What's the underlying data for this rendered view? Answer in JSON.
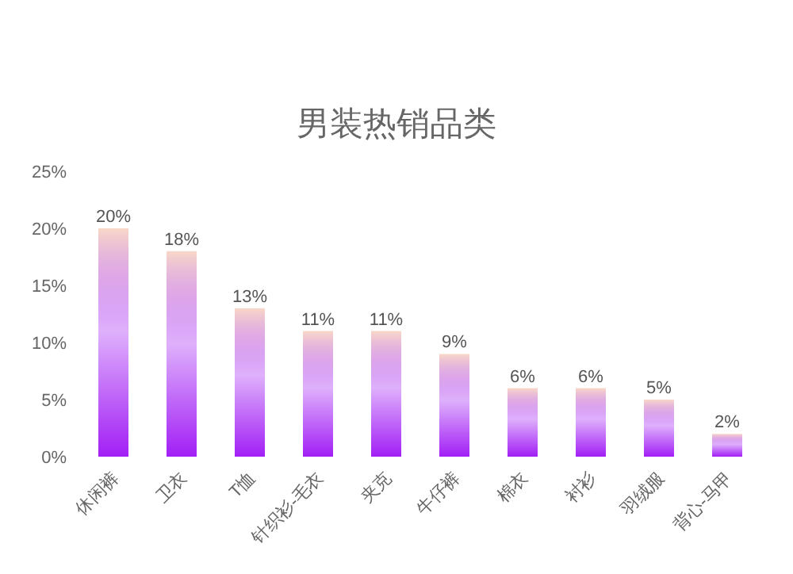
{
  "chart_data": {
    "type": "bar",
    "title": "男装热销品类",
    "categories": [
      "休闲裤",
      "卫衣",
      "T恤",
      "针织衫-毛衣",
      "夹克",
      "牛仔裤",
      "棉衣",
      "衬衫",
      "羽绒服",
      "背心-马甲"
    ],
    "values": [
      20,
      18,
      13,
      11,
      11,
      9,
      6,
      6,
      5,
      2
    ],
    "value_labels": [
      "20%",
      "18%",
      "13%",
      "11%",
      "11%",
      "9%",
      "6%",
      "6%",
      "5%",
      "2%"
    ],
    "color": "#a21ff5",
    "ylim": [
      0,
      25
    ],
    "yticks": [
      {
        "value": 0,
        "label": "0%"
      },
      {
        "value": 5,
        "label": "5%"
      },
      {
        "value": 10,
        "label": "10%"
      },
      {
        "value": 15,
        "label": "15%"
      },
      {
        "value": 20,
        "label": "20%"
      },
      {
        "value": 25,
        "label": "25%"
      }
    ],
    "grid": false
  }
}
